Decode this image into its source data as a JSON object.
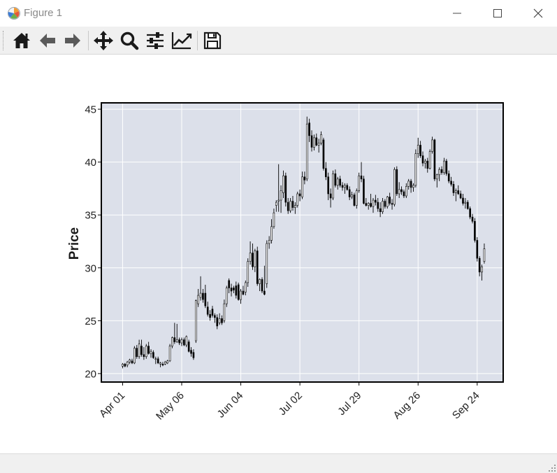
{
  "window": {
    "title": "Figure 1"
  },
  "toolbar": {
    "buttons": [
      {
        "name": "home",
        "icon": "home-icon"
      },
      {
        "name": "back",
        "icon": "arrow-left-icon"
      },
      {
        "name": "forward",
        "icon": "arrow-right-icon"
      },
      {
        "name": "pan",
        "icon": "move-icon"
      },
      {
        "name": "zoom",
        "icon": "magnifier-icon"
      },
      {
        "name": "subplots",
        "icon": "sliders-icon"
      },
      {
        "name": "customize",
        "icon": "chart-line-icon"
      },
      {
        "name": "save",
        "icon": "floppy-icon"
      }
    ]
  },
  "chart_data": {
    "type": "candlestick",
    "ylabel": "Price",
    "xlabel": "",
    "ylim": [
      19.2,
      45.6
    ],
    "yticks": [
      20,
      25,
      30,
      35,
      40,
      45
    ],
    "xtick_labels": [
      "Apr 01",
      "May 06",
      "Jun 04",
      "Jul 02",
      "Jul 29",
      "Aug 26",
      "Sep 24"
    ],
    "xtick_index": [
      0,
      25,
      50,
      75,
      100,
      125,
      150
    ],
    "x_range": [
      -9,
      161
    ],
    "colors": {
      "up": "#ffffff",
      "down": "#000000",
      "edge": "#000000",
      "face": "#dce0ea",
      "grid": "#ffffff"
    },
    "ohlc": [
      [
        20.7,
        21.0,
        20.5,
        20.9
      ],
      [
        20.9,
        21.0,
        20.6,
        20.7
      ],
      [
        20.8,
        21.2,
        20.6,
        21.1
      ],
      [
        21.1,
        21.4,
        20.9,
        21.3
      ],
      [
        21.2,
        21.4,
        20.9,
        21.0
      ],
      [
        21.0,
        22.6,
        20.9,
        22.4
      ],
      [
        22.4,
        22.7,
        21.4,
        21.6
      ],
      [
        21.6,
        23.2,
        21.4,
        22.8
      ],
      [
        22.6,
        23.2,
        21.6,
        21.8
      ],
      [
        21.8,
        22.5,
        21.3,
        21.6
      ],
      [
        21.6,
        22.8,
        21.4,
        22.6
      ],
      [
        22.6,
        23.0,
        21.8,
        21.9
      ],
      [
        21.9,
        22.3,
        21.5,
        22.1
      ],
      [
        22.0,
        22.2,
        21.4,
        21.5
      ],
      [
        21.4,
        21.6,
        20.9,
        21.4
      ],
      [
        21.4,
        21.6,
        20.9,
        21.0
      ],
      [
        20.9,
        21.1,
        20.6,
        21.0
      ],
      [
        20.9,
        21.1,
        20.7,
        20.8
      ],
      [
        20.9,
        21.2,
        20.8,
        21.1
      ],
      [
        21.0,
        21.3,
        20.9,
        21.2
      ],
      [
        21.2,
        22.8,
        21.1,
        22.6
      ],
      [
        22.6,
        23.5,
        22.4,
        23.4
      ],
      [
        23.4,
        24.8,
        22.8,
        23.0
      ],
      [
        23.0,
        24.7,
        22.9,
        23.2
      ],
      [
        23.2,
        23.4,
        22.7,
        22.9
      ],
      [
        22.9,
        23.4,
        22.6,
        23.2
      ],
      [
        23.2,
        23.4,
        22.6,
        22.7
      ],
      [
        22.7,
        23.6,
        22.5,
        23.5
      ],
      [
        23.0,
        23.2,
        22.0,
        22.1
      ],
      [
        22.2,
        22.5,
        21.6,
        21.9
      ],
      [
        22.0,
        22.3,
        21.3,
        21.5
      ],
      [
        23.1,
        27.0,
        22.9,
        26.9
      ],
      [
        26.6,
        28.0,
        26.3,
        27.4
      ],
      [
        27.2,
        29.2,
        26.9,
        27.6
      ],
      [
        27.6,
        28.0,
        26.7,
        27.0
      ],
      [
        27.6,
        28.4,
        26.2,
        26.4
      ],
      [
        26.3,
        26.8,
        25.4,
        25.6
      ],
      [
        25.6,
        26.0,
        25.0,
        25.3
      ],
      [
        26.1,
        26.4,
        25.3,
        25.5
      ],
      [
        25.5,
        25.7,
        24.8,
        25.3
      ],
      [
        25.3,
        25.6,
        24.2,
        24.5
      ],
      [
        24.8,
        25.7,
        24.6,
        25.2
      ],
      [
        25.2,
        25.5,
        24.6,
        24.8
      ],
      [
        25.0,
        27.0,
        24.8,
        26.6
      ],
      [
        26.6,
        28.3,
        26.3,
        28.1
      ],
      [
        28.8,
        29.0,
        27.6,
        28.1
      ],
      [
        28.1,
        28.5,
        27.3,
        27.8
      ],
      [
        28.1,
        28.3,
        27.6,
        27.9
      ],
      [
        28.3,
        28.7,
        27.1,
        27.4
      ],
      [
        28.4,
        28.6,
        26.9,
        27.0
      ],
      [
        27.0,
        28.0,
        26.6,
        27.8
      ],
      [
        27.8,
        28.3,
        27.4,
        27.5
      ],
      [
        27.7,
        28.8,
        27.4,
        28.6
      ],
      [
        28.6,
        30.9,
        28.2,
        30.6
      ],
      [
        30.6,
        32.5,
        30.3,
        31.4
      ],
      [
        31.4,
        32.3,
        29.8,
        30.1
      ],
      [
        30.1,
        31.8,
        29.6,
        31.6
      ],
      [
        31.6,
        32.0,
        28.3,
        28.5
      ],
      [
        28.5,
        29.0,
        27.8,
        28.9
      ],
      [
        28.9,
        29.1,
        27.6,
        27.8
      ],
      [
        27.8,
        30.2,
        27.4,
        27.5
      ],
      [
        28.5,
        32.6,
        28.1,
        32.3
      ],
      [
        32.3,
        33.0,
        31.8,
        32.6
      ],
      [
        32.6,
        34.6,
        32.3,
        33.9
      ],
      [
        33.9,
        35.6,
        33.7,
        35.2
      ],
      [
        35.9,
        36.4,
        35.3,
        36.2
      ],
      [
        36.3,
        39.8,
        35.3,
        36.4
      ],
      [
        36.4,
        37.8,
        35.2,
        37.3
      ],
      [
        37.1,
        39.2,
        36.6,
        38.7
      ],
      [
        38.7,
        39.0,
        35.8,
        36.2
      ],
      [
        36.2,
        36.6,
        35.1,
        35.4
      ],
      [
        35.4,
        36.6,
        35.2,
        36.3
      ],
      [
        36.3,
        36.8,
        35.4,
        35.7
      ],
      [
        35.7,
        36.2,
        35.1,
        35.9
      ],
      [
        35.9,
        37.2,
        35.7,
        37.0
      ],
      [
        37.0,
        37.4,
        36.3,
        36.8
      ],
      [
        36.7,
        39.1,
        36.5,
        38.6
      ],
      [
        38.6,
        39.1,
        37.9,
        38.3
      ],
      [
        38.4,
        44.3,
        38.2,
        43.6
      ],
      [
        43.7,
        44.1,
        41.9,
        42.5
      ],
      [
        42.5,
        43.0,
        41.0,
        41.4
      ],
      [
        41.4,
        42.6,
        41.1,
        42.3
      ],
      [
        42.3,
        42.7,
        41.5,
        41.6
      ],
      [
        41.6,
        42.2,
        40.9,
        41.8
      ],
      [
        41.8,
        42.9,
        41.6,
        42.6
      ],
      [
        42.1,
        42.3,
        39.2,
        39.4
      ],
      [
        39.4,
        40.0,
        38.3,
        38.6
      ],
      [
        38.6,
        39.0,
        36.4,
        37.0
      ],
      [
        37.0,
        37.5,
        35.7,
        36.6
      ],
      [
        36.6,
        39.2,
        36.4,
        38.9
      ],
      [
        38.9,
        39.3,
        37.6,
        37.8
      ],
      [
        37.8,
        38.6,
        37.4,
        38.4
      ],
      [
        38.4,
        38.7,
        37.6,
        37.8
      ],
      [
        37.8,
        38.1,
        37.3,
        37.6
      ],
      [
        37.6,
        38.0,
        37.0,
        37.8
      ],
      [
        37.8,
        38.0,
        37.3,
        37.4
      ],
      [
        37.4,
        37.7,
        36.4,
        36.7
      ],
      [
        36.7,
        37.2,
        36.5,
        36.9
      ],
      [
        36.9,
        37.1,
        35.8,
        35.9
      ],
      [
        35.9,
        37.5,
        35.6,
        37.3
      ],
      [
        37.3,
        39.0,
        37.1,
        38.7
      ],
      [
        38.7,
        40.0,
        38.1,
        38.4
      ],
      [
        38.4,
        38.7,
        36.0,
        36.1
      ],
      [
        36.1,
        36.6,
        35.8,
        35.9
      ],
      [
        35.9,
        36.2,
        35.5,
        36.1
      ],
      [
        36.1,
        37.0,
        35.7,
        35.8
      ],
      [
        35.8,
        36.6,
        35.2,
        36.4
      ],
      [
        36.4,
        36.9,
        35.9,
        36.2
      ],
      [
        36.2,
        36.6,
        35.3,
        35.6
      ],
      [
        35.6,
        36.2,
        34.8,
        35.3
      ],
      [
        35.3,
        36.6,
        35.1,
        36.3
      ],
      [
        36.3,
        36.5,
        35.6,
        35.8
      ],
      [
        35.8,
        36.8,
        35.6,
        36.7
      ],
      [
        36.7,
        37.1,
        35.9,
        36.1
      ],
      [
        36.1,
        36.5,
        35.5,
        36.0
      ],
      [
        36.0,
        39.5,
        35.8,
        39.3
      ],
      [
        39.3,
        39.6,
        36.8,
        37.0
      ],
      [
        37.0,
        38.1,
        36.6,
        37.4
      ],
      [
        37.4,
        37.7,
        36.9,
        37.2
      ],
      [
        37.2,
        37.4,
        36.6,
        36.8
      ],
      [
        36.8,
        38.0,
        36.6,
        37.7
      ],
      [
        37.7,
        38.4,
        37.4,
        38.2
      ],
      [
        38.2,
        38.4,
        37.1,
        37.6
      ],
      [
        37.6,
        38.0,
        37.2,
        37.8
      ],
      [
        37.8,
        41.2,
        37.6,
        40.8
      ],
      [
        40.8,
        42.3,
        40.4,
        41.6
      ],
      [
        41.6,
        42.0,
        40.4,
        40.6
      ],
      [
        40.6,
        41.0,
        39.6,
        39.9
      ],
      [
        39.9,
        40.3,
        39.4,
        40.1
      ],
      [
        40.1,
        40.4,
        39.0,
        39.4
      ],
      [
        39.4,
        41.2,
        39.3,
        41.0
      ],
      [
        41.0,
        42.4,
        40.8,
        42.1
      ],
      [
        42.1,
        42.2,
        38.2,
        38.4
      ],
      [
        38.4,
        38.9,
        37.6,
        38.8
      ],
      [
        38.8,
        39.5,
        38.2,
        39.3
      ],
      [
        39.3,
        39.6,
        38.8,
        39.0
      ],
      [
        39.0,
        40.4,
        38.8,
        40.1
      ],
      [
        40.1,
        40.3,
        38.7,
        38.9
      ],
      [
        38.9,
        39.2,
        38.0,
        38.2
      ],
      [
        38.2,
        38.6,
        37.7,
        37.9
      ],
      [
        37.9,
        38.2,
        36.8,
        37.1
      ],
      [
        37.1,
        37.5,
        36.3,
        37.3
      ],
      [
        37.3,
        37.8,
        36.9,
        37.0
      ],
      [
        37.0,
        37.3,
        36.5,
        36.6
      ],
      [
        36.6,
        37.0,
        35.9,
        36.1
      ],
      [
        36.1,
        36.6,
        35.6,
        36.2
      ],
      [
        36.2,
        36.4,
        35.5,
        35.6
      ],
      [
        35.6,
        35.8,
        34.6,
        34.8
      ],
      [
        34.8,
        35.1,
        34.2,
        34.4
      ],
      [
        34.4,
        34.7,
        32.4,
        32.6
      ],
      [
        32.6,
        32.9,
        30.6,
        30.9
      ],
      [
        30.9,
        31.1,
        29.2,
        29.6
      ],
      [
        29.6,
        30.3,
        28.8,
        30.1
      ],
      [
        30.6,
        32.3,
        30.4,
        31.8
      ]
    ]
  }
}
